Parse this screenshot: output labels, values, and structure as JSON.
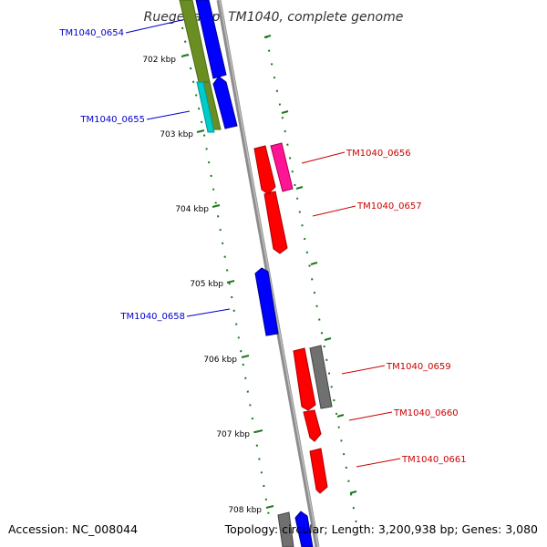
{
  "title": "Ruegeria sp. TM1040, complete genome",
  "footer": {
    "accession": "Accession: NC_008044",
    "topology": "Topology: circular; Length: 3,200,938 bp; Genes: 3,080"
  },
  "colors": {
    "forward_label": "#0000cc",
    "reverse_label": "#cc0000",
    "tick": "#1a7a1a",
    "backbone": "#8c8c8c"
  },
  "scale": {
    "unit": "kbp",
    "ticks": [
      {
        "kbp": 702,
        "label": "702 kbp"
      },
      {
        "kbp": 703,
        "label": "703 kbp"
      },
      {
        "kbp": 704,
        "label": "704 kbp"
      },
      {
        "kbp": 705,
        "label": "705 kbp"
      },
      {
        "kbp": 706,
        "label": "706 kbp"
      },
      {
        "kbp": 707,
        "label": "707 kbp"
      },
      {
        "kbp": 708,
        "label": "708 kbp"
      }
    ]
  },
  "labeled_genes": [
    {
      "id": "TM1040_0654",
      "strand": "forward"
    },
    {
      "id": "TM1040_0655",
      "strand": "forward"
    },
    {
      "id": "TM1040_0656",
      "strand": "reverse"
    },
    {
      "id": "TM1040_0657",
      "strand": "reverse"
    },
    {
      "id": "TM1040_0658",
      "strand": "forward"
    },
    {
      "id": "TM1040_0659",
      "strand": "reverse"
    },
    {
      "id": "TM1040_0660",
      "strand": "reverse"
    },
    {
      "id": "TM1040_0661",
      "strand": "reverse"
    }
  ]
}
